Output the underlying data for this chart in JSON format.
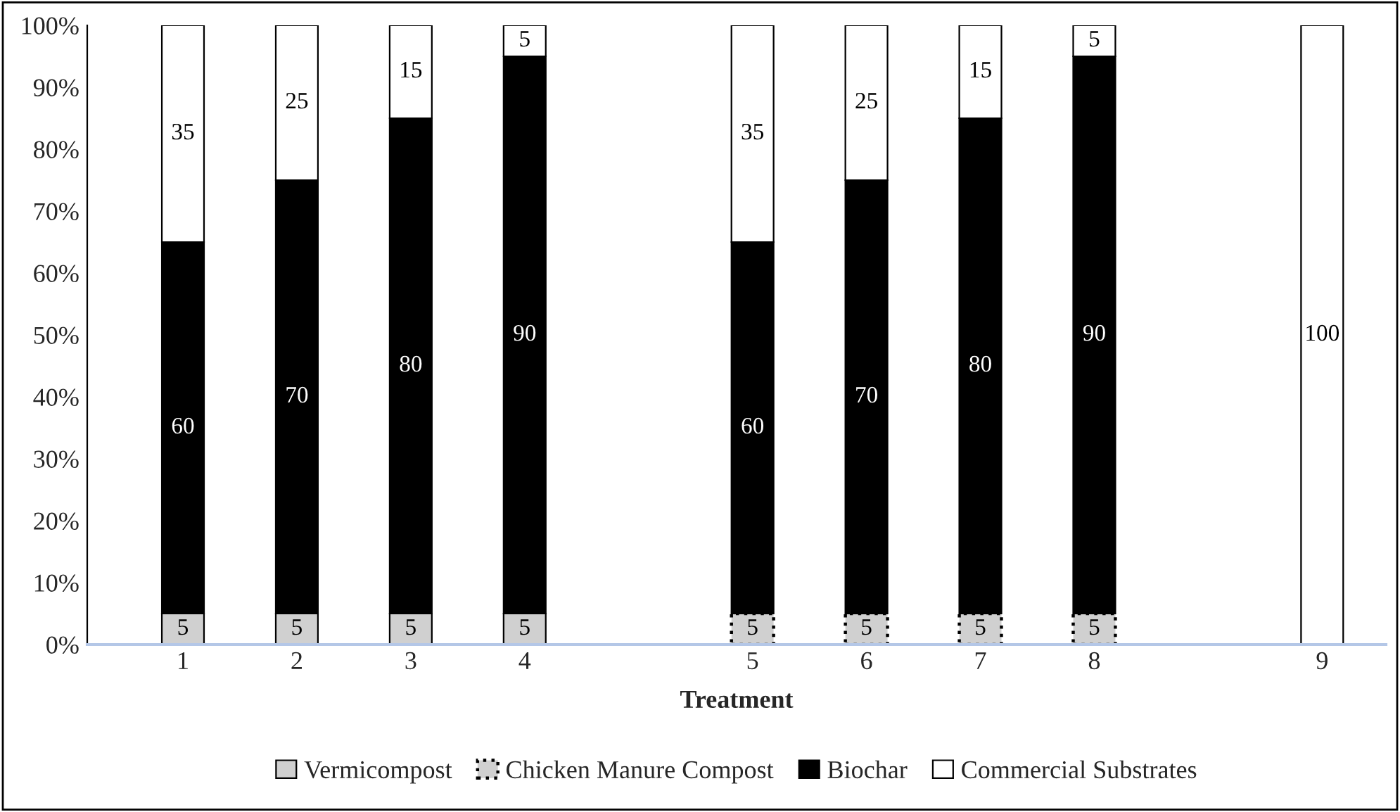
{
  "chart_data": {
    "type": "bar",
    "stacked": true,
    "xlabel": "Treatment",
    "categories": [
      "1",
      "2",
      "3",
      "4",
      null,
      "5",
      "6",
      "7",
      "8",
      null,
      "9"
    ],
    "series": [
      {
        "name": "Vermicompost",
        "color": "#d0d0d0",
        "values": [
          5,
          5,
          5,
          5,
          null,
          null,
          null,
          null,
          null,
          null,
          null
        ]
      },
      {
        "name": "Chicken Manure Compost",
        "color": "#d0d0d0",
        "line_style": "dotted",
        "values": [
          null,
          null,
          null,
          null,
          null,
          5,
          5,
          5,
          5,
          null,
          null
        ]
      },
      {
        "name": "Biochar",
        "color": "#000000",
        "values": [
          60,
          70,
          80,
          90,
          null,
          60,
          70,
          80,
          90,
          null,
          null
        ]
      },
      {
        "name": "Commercial Substrates",
        "color": "#ffffff",
        "values": [
          35,
          25,
          15,
          5,
          null,
          35,
          25,
          15,
          5,
          null,
          100
        ]
      }
    ],
    "ylim": [
      0,
      100
    ],
    "yticks": [
      {
        "value": 0,
        "label": "0%"
      },
      {
        "value": 10,
        "label": "10%"
      },
      {
        "value": 20,
        "label": "20%"
      },
      {
        "value": 30,
        "label": "30%"
      },
      {
        "value": 40,
        "label": "40%"
      },
      {
        "value": 50,
        "label": "50%"
      },
      {
        "value": 60,
        "label": "60%"
      },
      {
        "value": 70,
        "label": "70%"
      },
      {
        "value": 80,
        "label": "80%"
      },
      {
        "value": 90,
        "label": "90%"
      },
      {
        "value": 100,
        "label": "100%"
      }
    ],
    "data_labels": true,
    "legend": "bottom",
    "grid": false
  }
}
